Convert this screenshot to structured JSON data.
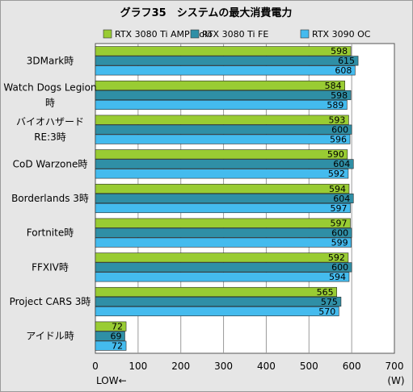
{
  "chart_data": {
    "type": "bar",
    "orientation": "horizontal",
    "title": "グラフ35　システムの最大消費電力",
    "categories": [
      [
        "3DMark時"
      ],
      [
        "Watch Dogs Legion",
        "時"
      ],
      [
        "バイオハザード",
        "RE:3時"
      ],
      [
        "CoD Warzone時"
      ],
      [
        "Borderlands 3時"
      ],
      [
        "Fortnite時"
      ],
      [
        "FFXIV時"
      ],
      [
        "Project CARS 3時"
      ],
      [
        "アイドル時"
      ]
    ],
    "series": [
      {
        "name": "RTX 3080 Ti AMP Holo",
        "color": "#99cc33",
        "values": [
          598,
          584,
          593,
          590,
          594,
          597,
          592,
          565,
          72
        ]
      },
      {
        "name": "RTX 3080 Ti FE",
        "color": "#2f8fa6",
        "values": [
          615,
          598,
          600,
          604,
          604,
          600,
          600,
          575,
          69
        ]
      },
      {
        "name": "RTX 3090 OC",
        "color": "#44bbee",
        "values": [
          608,
          589,
          596,
          592,
          597,
          599,
          594,
          570,
          72
        ]
      }
    ],
    "xlim": [
      0,
      700
    ],
    "xticks": [
      0,
      100,
      200,
      300,
      400,
      500,
      600,
      700
    ],
    "xlabel_left": "LOW←",
    "unit": "(W)",
    "grid": true,
    "legend_position": "top"
  }
}
